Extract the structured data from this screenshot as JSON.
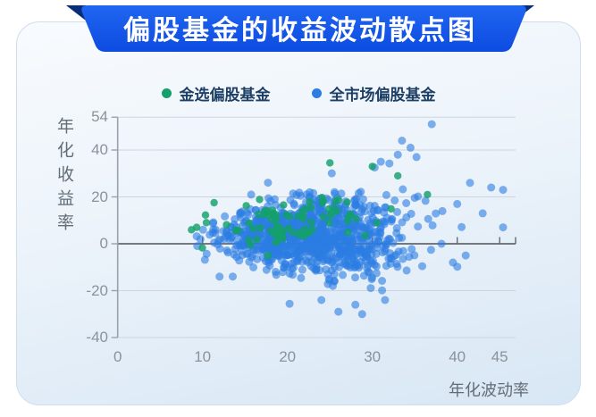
{
  "chart_data": {
    "type": "scatter",
    "title": "偏股基金的收益波动散点图",
    "xlabel": "年化波动率",
    "ylabel": "年化收益率",
    "xlim": [
      0,
      47
    ],
    "ylim": [
      -40,
      54
    ],
    "x_ticks": [
      0,
      10,
      20,
      30,
      40,
      45
    ],
    "y_ticks": [
      54,
      40,
      20,
      0,
      -20,
      -40
    ],
    "grid": "horizontal",
    "legend_position": "top-center",
    "seed": 7,
    "series": [
      {
        "name": "金选偏股基金",
        "color": "#14a06b",
        "opacity": 0.82,
        "marker_radius": 4.2,
        "count": 85,
        "z": 2,
        "distribution": {
          "x_mean": 19.5,
          "x_std": 4.3,
          "y_mean": 8.0,
          "y_std": 5.2,
          "xy_corr": 0.1,
          "x_range": [
            8.5,
            34
          ],
          "y_range": [
            -6,
            31
          ],
          "fan": [
            1,
            0
          ]
        },
        "outliers": [
          [
            25,
            34.5
          ],
          [
            30,
            33
          ],
          [
            33,
            29
          ],
          [
            36.5,
            21
          ],
          [
            8.7,
            6
          ],
          [
            9.3,
            7
          ]
        ]
      },
      {
        "name": "全市场偏股基金",
        "color": "#2b7de2",
        "opacity": 0.6,
        "marker_radius": 4.5,
        "count": 1050,
        "z": 1,
        "distribution": {
          "x_mean": 22.5,
          "x_std": 5.4,
          "y_mean": 3.5,
          "y_std": 9.0,
          "xy_corr": 0,
          "x_range": [
            9,
            46
          ],
          "y_range": [
            -31,
            40
          ],
          "fan": [
            0.55,
            0.6
          ]
        },
        "outliers": [
          [
            37,
            51
          ],
          [
            33.5,
            44
          ],
          [
            34.5,
            41
          ],
          [
            33,
            38
          ],
          [
            35.2,
            37
          ],
          [
            31,
            35
          ],
          [
            41.5,
            26
          ],
          [
            44,
            24
          ],
          [
            45.4,
            23
          ],
          [
            40,
            17
          ],
          [
            43,
            13
          ],
          [
            45.4,
            7
          ],
          [
            41,
            -5
          ],
          [
            39.5,
            -8
          ],
          [
            12,
            -14
          ],
          [
            24,
            -24
          ],
          [
            31.5,
            -24
          ],
          [
            28,
            -26
          ],
          [
            28.8,
            -30
          ],
          [
            26,
            -29
          ]
        ]
      }
    ]
  },
  "banner": {
    "color_top": "#2066f2",
    "color_bottom": "#0d4be0",
    "fold_color": "#0a2d78",
    "text_color": "#ffffff"
  },
  "axes_style": {
    "grid_color": "#ccd5de",
    "zero_line_color": "#63686e",
    "spine_color": "#9aa1a8",
    "tick_label_color": "#8b929b"
  }
}
